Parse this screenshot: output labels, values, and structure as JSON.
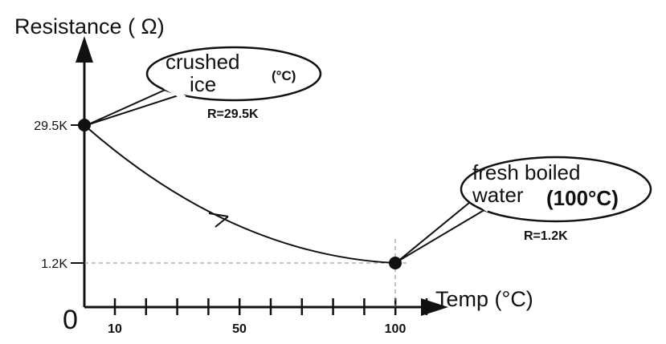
{
  "chart_data": {
    "type": "line",
    "ylabel": "Resistance ( Ω)",
    "xlabel": "Temp (°C)",
    "origin_label": "0",
    "x_ticks": [
      {
        "value": 10,
        "label": "10"
      },
      {
        "value": 50,
        "label": "50"
      },
      {
        "value": 100,
        "label": "100"
      }
    ],
    "y_ticks": [
      {
        "value": 29.5,
        "label": "29.5K"
      },
      {
        "value": 1.2,
        "label": "1.2K"
      }
    ],
    "series": [
      {
        "points": [
          {
            "x": 0,
            "y": 29.5
          },
          {
            "x": 100,
            "y": 1.2
          }
        ]
      }
    ],
    "annotations": [
      {
        "point_index": 0,
        "bubble_lines": [
          "crushed",
          "ice"
        ],
        "bubble_unit": "(°C)",
        "value_label": "R=29.5K"
      },
      {
        "point_index": 1,
        "bubble_lines": [
          "fresh boiled",
          "water"
        ],
        "bubble_unit": "(100°C)",
        "value_label": "R=1.2K"
      }
    ]
  }
}
